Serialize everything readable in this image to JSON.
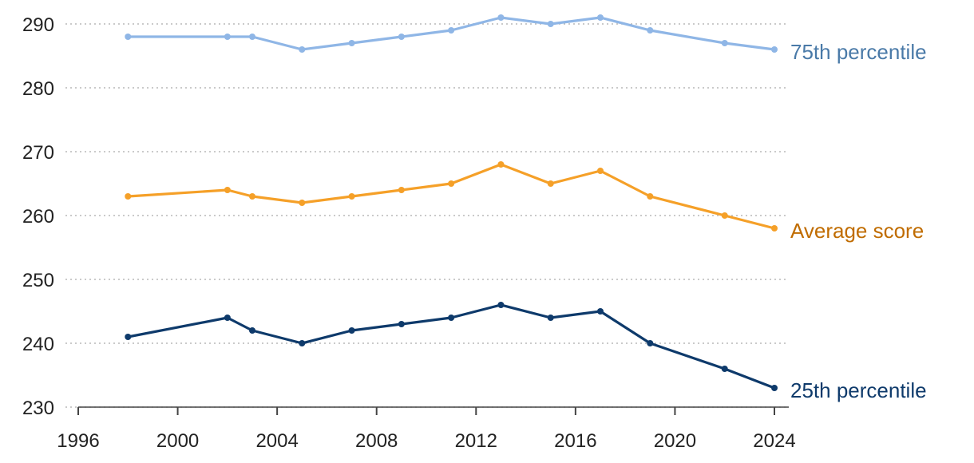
{
  "chart_data": {
    "type": "line",
    "title": "",
    "xlabel": "",
    "ylabel": "",
    "xlim": [
      1996,
      2024
    ],
    "ylim": [
      230,
      290
    ],
    "x_ticks": [
      "1996",
      "2000",
      "2004",
      "2008",
      "2012",
      "2016",
      "2020",
      "2024"
    ],
    "y_ticks": [
      "230",
      "240",
      "250",
      "260",
      "270",
      "280",
      "290"
    ],
    "grid": "horizontal dotted",
    "legend": "direct labels at right end of lines",
    "x": [
      1998,
      2002,
      2003,
      2005,
      2007,
      2009,
      2011,
      2013,
      2015,
      2017,
      2019,
      2022,
      2024
    ],
    "series": [
      {
        "name": "75th percentile",
        "color": "#8fb6e6",
        "label_color": "#4a7aa8",
        "values": [
          288,
          288,
          288,
          286,
          287,
          288,
          289,
          291,
          290,
          291,
          289,
          287,
          286
        ]
      },
      {
        "name": "Average score",
        "color": "#f5a028",
        "label_color": "#c06c00",
        "values": [
          263,
          264,
          263,
          262,
          263,
          264,
          265,
          268,
          265,
          267,
          263,
          260,
          258
        ]
      },
      {
        "name": "25th percentile",
        "color": "#0e3a6b",
        "label_color": "#0e3a6b",
        "values": [
          241,
          244,
          242,
          240,
          242,
          243,
          244,
          246,
          244,
          245,
          240,
          236,
          233
        ]
      }
    ]
  }
}
